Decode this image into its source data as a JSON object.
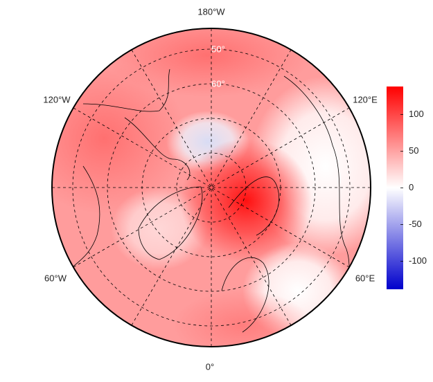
{
  "map": {
    "meridian_labels": [
      "180°W",
      "120°W",
      "120°E",
      "60°W",
      "60°E",
      "0°"
    ],
    "latitude_labels": [
      "50°",
      "60°"
    ],
    "colorbar": {
      "clim": [
        -138,
        138
      ],
      "ticks": [
        100,
        50,
        0,
        -50,
        -100
      ],
      "colors": [
        "#0000cc",
        "#ffffff",
        "#ff0000"
      ]
    }
  }
}
